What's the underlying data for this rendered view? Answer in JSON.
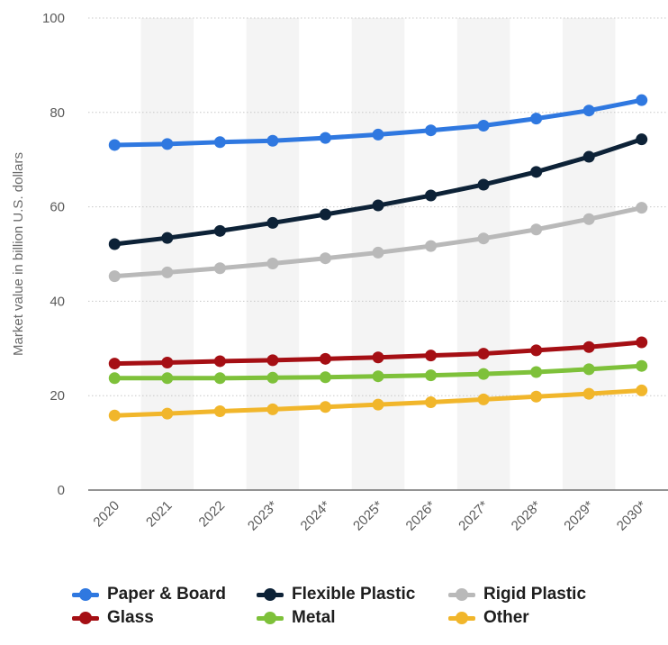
{
  "chart_data": {
    "type": "line",
    "title": "",
    "xlabel": "",
    "ylabel": "Market value in billion U.S. dollars",
    "ylim": [
      0,
      100
    ],
    "yticks": [
      0,
      20,
      40,
      60,
      80,
      100
    ],
    "grid": "horizontal dotted",
    "legend_position": "bottom",
    "x": [
      "2020",
      "2021",
      "2022",
      "2023*",
      "2024*",
      "2025*",
      "2026*",
      "2027*",
      "2028*",
      "2029*",
      "2030*"
    ],
    "series": [
      {
        "name": "Paper & Board",
        "color": "#2f78e0",
        "values": [
          73.1,
          73.3,
          73.7,
          74.0,
          74.6,
          75.3,
          76.2,
          77.2,
          78.7,
          80.4,
          82.6
        ]
      },
      {
        "name": "Flexible Plastic",
        "color": "#0d2237",
        "values": [
          52.1,
          53.4,
          54.9,
          56.6,
          58.4,
          60.3,
          62.4,
          64.7,
          67.4,
          70.6,
          74.3
        ]
      },
      {
        "name": "Rigid Plastic",
        "color": "#b9b9b9",
        "values": [
          45.3,
          46.1,
          47.0,
          48.0,
          49.1,
          50.3,
          51.7,
          53.3,
          55.2,
          57.4,
          59.8
        ]
      },
      {
        "name": "Glass",
        "color": "#a50f14",
        "values": [
          26.8,
          27.0,
          27.3,
          27.5,
          27.8,
          28.1,
          28.5,
          28.9,
          29.6,
          30.3,
          31.3
        ]
      },
      {
        "name": "Metal",
        "color": "#7ec13a",
        "values": [
          23.7,
          23.7,
          23.7,
          23.8,
          23.9,
          24.1,
          24.3,
          24.6,
          25.0,
          25.6,
          26.3
        ]
      },
      {
        "name": "Other",
        "color": "#f1b62b",
        "values": [
          15.8,
          16.2,
          16.7,
          17.1,
          17.6,
          18.1,
          18.6,
          19.2,
          19.8,
          20.4,
          21.1
        ]
      }
    ]
  }
}
